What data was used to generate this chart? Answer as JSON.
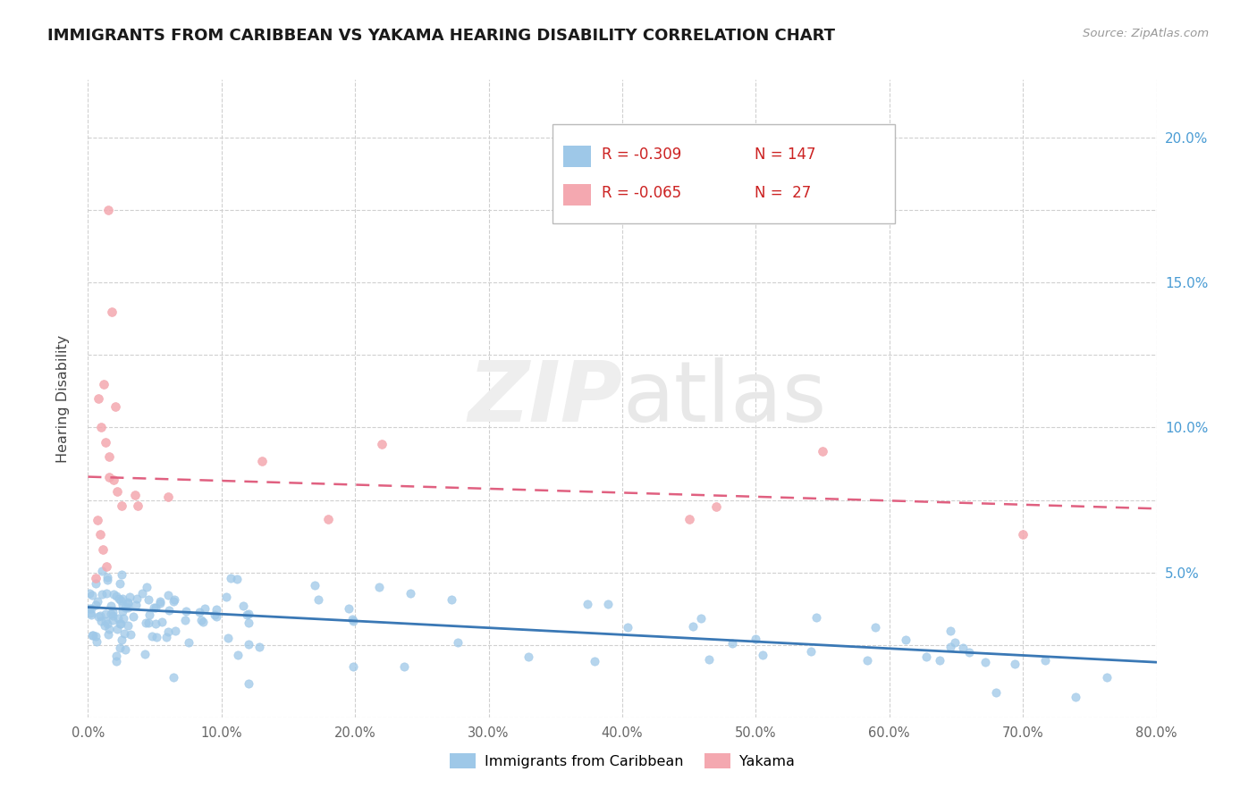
{
  "title": "IMMIGRANTS FROM CARIBBEAN VS YAKAMA HEARING DISABILITY CORRELATION CHART",
  "source_text": "Source: ZipAtlas.com",
  "ylabel": "Hearing Disability",
  "watermark": "ZIPatlas",
  "legend_blue_r": "-0.309",
  "legend_blue_n": "147",
  "legend_pink_r": "-0.065",
  "legend_pink_n": "27",
  "legend_label1": "Immigrants from Caribbean",
  "legend_label2": "Yakama",
  "xlim": [
    0.0,
    0.8
  ],
  "ylim": [
    0.0,
    0.22
  ],
  "xtick_vals": [
    0.0,
    0.1,
    0.2,
    0.3,
    0.4,
    0.5,
    0.6,
    0.7,
    0.8
  ],
  "xtick_labels": [
    "0.0%",
    "10.0%",
    "20.0%",
    "30.0%",
    "40.0%",
    "50.0%",
    "60.0%",
    "70.0%",
    "80.0%"
  ],
  "ytick_right_vals": [
    0.05,
    0.1,
    0.15,
    0.2
  ],
  "ytick_right_labels": [
    "5.0%",
    "10.0%",
    "15.0%",
    "20.0%"
  ],
  "title_color": "#1a1a1a",
  "title_fontsize": 13,
  "blue_scatter_color": "#9ec8e8",
  "pink_scatter_color": "#f4a8b0",
  "blue_line_color": "#3a78b5",
  "pink_line_color": "#e06080",
  "right_axis_color": "#4a9cd4",
  "grid_color": "#d0d0d0",
  "background_color": "#ffffff",
  "blue_trend_x": [
    0.0,
    0.8
  ],
  "blue_trend_y": [
    0.038,
    0.019
  ],
  "pink_trend_x": [
    0.0,
    0.8
  ],
  "pink_trend_y": [
    0.083,
    0.072
  ]
}
